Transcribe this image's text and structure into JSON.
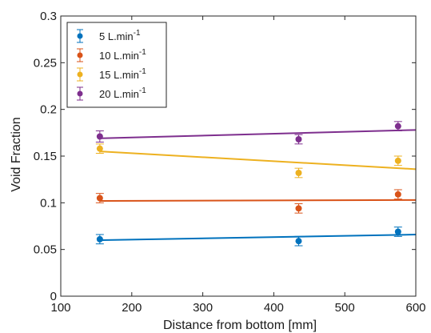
{
  "chart_data": {
    "type": "scatter",
    "xlabel": "Distance from bottom [mm]",
    "ylabel": "Void Fraction",
    "xlim": [
      100,
      600
    ],
    "ylim": [
      0,
      0.3
    ],
    "xticks": [
      100,
      200,
      300,
      400,
      500,
      600
    ],
    "yticks": [
      0,
      0.05,
      0.1,
      0.15,
      0.2,
      0.25,
      0.3
    ],
    "xtick_labels": [
      "100",
      "200",
      "300",
      "400",
      "500",
      "600"
    ],
    "ytick_labels": [
      "0",
      "0.05",
      "0.1",
      "0.15",
      "0.2",
      "0.25",
      "0.3"
    ],
    "grid": false,
    "legend_position": "top-left",
    "series": [
      {
        "name": "5 L.min",
        "name_superscript": "-1",
        "color": "#0072BD",
        "x": [
          155,
          435,
          575
        ],
        "y": [
          0.061,
          0.059,
          0.069
        ],
        "yerr": [
          0.005,
          0.005,
          0.005
        ],
        "fit": {
          "x": [
            155,
            600
          ],
          "y": [
            0.06,
            0.066
          ]
        }
      },
      {
        "name": "10 L.min",
        "name_superscript": "-1",
        "color": "#D95319",
        "x": [
          155,
          435,
          575
        ],
        "y": [
          0.105,
          0.094,
          0.109
        ],
        "yerr": [
          0.005,
          0.005,
          0.005
        ],
        "fit": {
          "x": [
            155,
            600
          ],
          "y": [
            0.102,
            0.103
          ]
        }
      },
      {
        "name": "15 L.min",
        "name_superscript": "-1",
        "color": "#EDB120",
        "x": [
          155,
          435,
          575
        ],
        "y": [
          0.158,
          0.132,
          0.145
        ],
        "yerr": [
          0.005,
          0.005,
          0.005
        ],
        "fit": {
          "x": [
            155,
            600
          ],
          "y": [
            0.155,
            0.136
          ]
        }
      },
      {
        "name": "20 L.min",
        "name_superscript": "-1",
        "color": "#7E2F8E",
        "x": [
          155,
          435,
          575
        ],
        "y": [
          0.171,
          0.168,
          0.182
        ],
        "yerr": [
          0.006,
          0.005,
          0.005
        ],
        "fit": {
          "x": [
            155,
            600
          ],
          "y": [
            0.169,
            0.178
          ]
        }
      }
    ]
  }
}
